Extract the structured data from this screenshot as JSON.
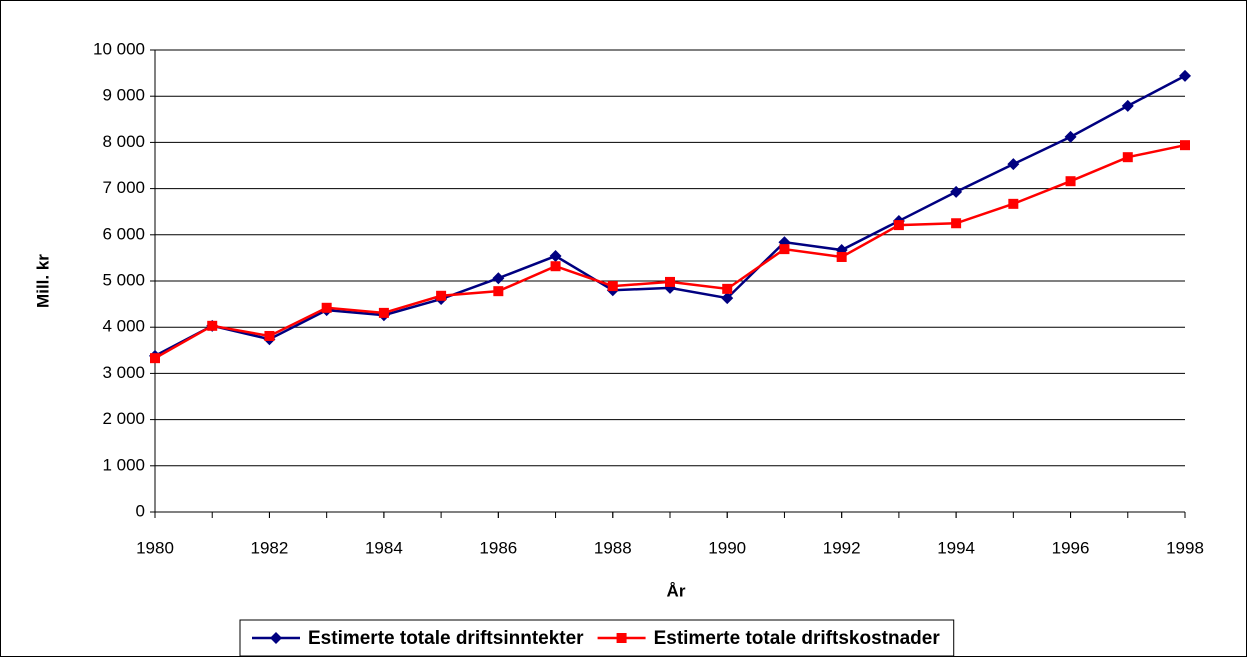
{
  "chart_data": {
    "type": "line",
    "x": [
      1980,
      1981,
      1982,
      1983,
      1984,
      1985,
      1986,
      1987,
      1988,
      1989,
      1990,
      1991,
      1992,
      1993,
      1994,
      1995,
      1996,
      1997,
      1998
    ],
    "series": [
      {
        "name": "Estimerte totale driftsinntekter",
        "color": "#000080",
        "marker": "diamond",
        "values": [
          3380,
          4030,
          3740,
          4370,
          4260,
          4610,
          5060,
          5540,
          4800,
          4850,
          4630,
          5840,
          5670,
          6300,
          6930,
          7530,
          8120,
          8790,
          9440
        ]
      },
      {
        "name": "Estimerte totale driftskostnader",
        "color": "#ff0000",
        "marker": "square",
        "values": [
          3330,
          4030,
          3810,
          4420,
          4310,
          4680,
          4780,
          5320,
          4890,
          4980,
          4830,
          5690,
          5520,
          6210,
          6250,
          6670,
          7160,
          7680,
          7940
        ]
      }
    ],
    "xlabel": "År",
    "ylabel": "Mill. kr",
    "xlim": [
      1980,
      1998
    ],
    "xticks": [
      1980,
      1982,
      1984,
      1986,
      1988,
      1990,
      1992,
      1994,
      1996,
      1998
    ],
    "ylim": [
      0,
      10000
    ],
    "yticks": [
      0,
      {
        "value": 1000,
        "label": "1 000"
      },
      {
        "value": 2000,
        "label": "2 000"
      },
      {
        "value": 3000,
        "label": "3 000"
      },
      {
        "value": 4000,
        "label": "4 000"
      },
      {
        "value": 5000,
        "label": "5 000"
      },
      {
        "value": 6000,
        "label": "6 000"
      },
      {
        "value": 7000,
        "label": "7 000"
      },
      {
        "value": 8000,
        "label": "8 000"
      },
      {
        "value": 9000,
        "label": "9 000"
      },
      {
        "value": 10000,
        "label": "10 000"
      }
    ],
    "grid": true,
    "legend": "bottom"
  }
}
